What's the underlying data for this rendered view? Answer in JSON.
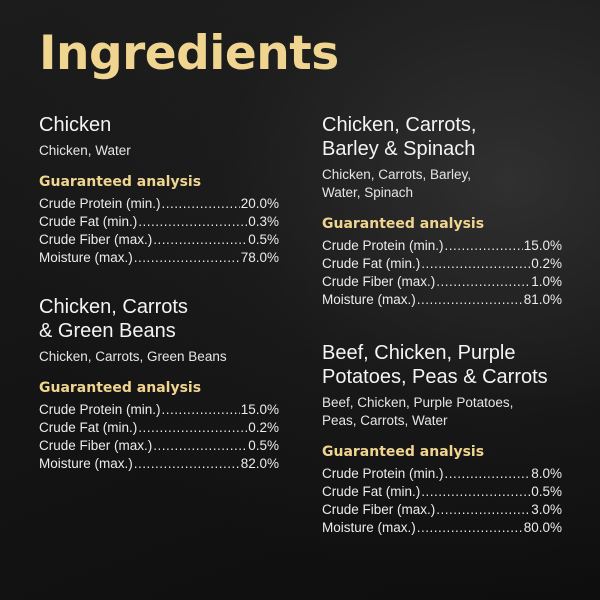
{
  "title": "Ingredients",
  "colors": {
    "accent": "#f0d590",
    "text": "#f2f2f2",
    "background": "#151515"
  },
  "recipes": [
    {
      "name": "Chicken",
      "ingredients": "Chicken, Water",
      "analysis_heading": "Guaranteed analysis",
      "analysis": [
        {
          "label": "Crude Protein (min.)",
          "value": "20.0%"
        },
        {
          "label": "Crude Fat (min.)",
          "value": "0.3%"
        },
        {
          "label": "Crude Fiber (max.)",
          "value": "0.5%"
        },
        {
          "label": "Moisture (max.)",
          "value": "78.0%"
        }
      ]
    },
    {
      "name_line1": "Chicken, Carrots",
      "name_line2": "& Green Beans",
      "ingredients": "Chicken, Carrots, Green Beans",
      "analysis_heading": "Guaranteed analysis",
      "analysis": [
        {
          "label": "Crude Protein (min.)",
          "value": "15.0%"
        },
        {
          "label": "Crude Fat (min.)",
          "value": "0.2%"
        },
        {
          "label": "Crude Fiber (max.)",
          "value": "0.5%"
        },
        {
          "label": "Moisture (max.)",
          "value": "82.0%"
        }
      ]
    },
    {
      "name_line1": "Chicken, Carrots,",
      "name_line2": "Barley & Spinach",
      "ingredients_line1": "Chicken, Carrots, Barley,",
      "ingredients_line2": "Water, Spinach",
      "analysis_heading": "Guaranteed analysis",
      "analysis": [
        {
          "label": "Crude Protein (min.)",
          "value": "15.0%"
        },
        {
          "label": "Crude Fat (min.)",
          "value": "0.2%"
        },
        {
          "label": "Crude Fiber (max.)",
          "value": "1.0%"
        },
        {
          "label": "Moisture (max.)",
          "value": "81.0%"
        }
      ]
    },
    {
      "name_line1": "Beef, Chicken, Purple",
      "name_line2": "Potatoes, Peas & Carrots",
      "ingredients_line1": "Beef, Chicken, Purple Potatoes,",
      "ingredients_line2": "Peas, Carrots, Water",
      "analysis_heading": "Guaranteed analysis",
      "analysis": [
        {
          "label": "Crude Protein (min.)",
          "value": "8.0%"
        },
        {
          "label": "Crude Fat (min.)",
          "value": "0.5%"
        },
        {
          "label": "Crude Fiber (max.)",
          "value": "3.0%"
        },
        {
          "label": "Moisture (max.)",
          "value": "80.0%"
        }
      ]
    }
  ]
}
